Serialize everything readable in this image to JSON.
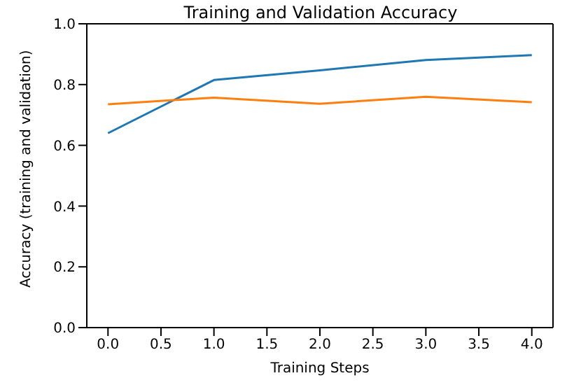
{
  "chart_data": {
    "type": "line",
    "title": "Training and Validation Accuracy",
    "xlabel": "Training Steps",
    "ylabel": "Accuracy (training and validation)",
    "x": [
      0,
      1,
      2,
      3,
      4
    ],
    "series": [
      {
        "color": "#1f77b4",
        "values": [
          0.64,
          0.815,
          0.847,
          0.881,
          0.897
        ]
      },
      {
        "color": "#ff7f0e",
        "values": [
          0.735,
          0.757,
          0.737,
          0.76,
          0.742
        ]
      }
    ],
    "xlim": [
      -0.2,
      4.2
    ],
    "xticks": [
      {
        "value": 0,
        "label": "0.0"
      },
      {
        "value": 0.5,
        "label": "0.5"
      },
      {
        "value": 1,
        "label": "1.0"
      },
      {
        "value": 1.5,
        "label": "1.5"
      },
      {
        "value": 2,
        "label": "2.0"
      },
      {
        "value": 2.5,
        "label": "2.5"
      },
      {
        "value": 3,
        "label": "3.0"
      },
      {
        "value": 3.5,
        "label": "3.5"
      },
      {
        "value": 4,
        "label": "4.0"
      }
    ],
    "ylim": [
      0,
      1
    ],
    "yticks": [
      {
        "value": 0,
        "label": "0.0"
      },
      {
        "value": 0.2,
        "label": "0.2"
      },
      {
        "value": 0.4,
        "label": "0.4"
      },
      {
        "value": 0.6,
        "label": "0.6"
      },
      {
        "value": 0.8,
        "label": "0.8"
      },
      {
        "value": 1,
        "label": "1.0"
      }
    ],
    "grid": false,
    "legend": false,
    "marker": "none",
    "line_style": "solid"
  }
}
